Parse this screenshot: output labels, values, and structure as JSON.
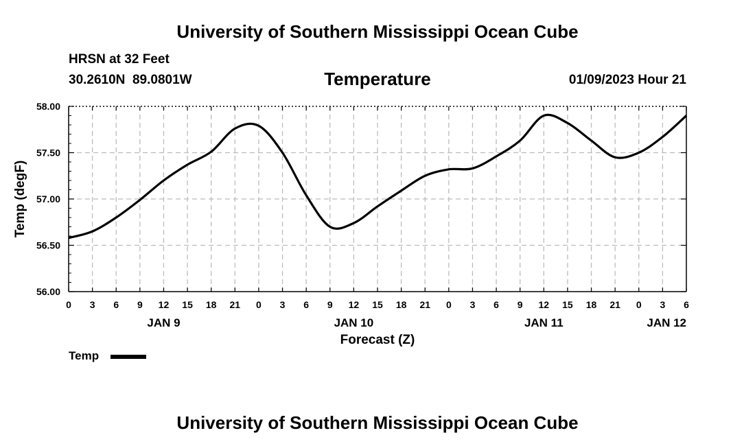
{
  "header": {
    "title": "University of Southern Mississippi Ocean Cube",
    "station": "HRSN at 32 Feet",
    "coords": "30.2610N  89.0801W",
    "variable": "Temperature",
    "timestamp": "01/09/2023 Hour 21"
  },
  "footer": {
    "title": "University of Southern Mississippi Ocean Cube"
  },
  "legend": {
    "label": "Temp"
  },
  "colors": {
    "line": "#000000",
    "grid": "#bbbbbb",
    "background": "#ffffff"
  },
  "chart_data": {
    "type": "line",
    "xlabel": "Forecast (Z)",
    "ylabel": "Temp (degF)",
    "ylim": [
      56.0,
      58.0
    ],
    "y_ticks": [
      "56.00",
      "56.50",
      "57.00",
      "57.50",
      "58.00"
    ],
    "xlim": [
      "2023-01-09 00Z",
      "2023-01-12 06Z"
    ],
    "x_tick_labels": [
      "0",
      "3",
      "6",
      "9",
      "12",
      "15",
      "18",
      "21",
      "0",
      "3",
      "6",
      "9",
      "12",
      "15",
      "18",
      "21",
      "0",
      "3",
      "6",
      "9",
      "12",
      "15",
      "18",
      "21",
      "0",
      "3",
      "6"
    ],
    "date_labels": [
      {
        "label": "JAN 9",
        "at": "2023-01-09 12Z"
      },
      {
        "label": "JAN 10",
        "at": "2023-01-10 12Z"
      },
      {
        "label": "JAN 11",
        "at": "2023-01-11 12Z"
      },
      {
        "label": "JAN 12",
        "at": "2023-01-12 06Z"
      }
    ],
    "grid": true,
    "series": [
      {
        "name": "Temp",
        "x": [
          "2023-01-09 00Z",
          "2023-01-09 03Z",
          "2023-01-09 06Z",
          "2023-01-09 09Z",
          "2023-01-09 12Z",
          "2023-01-09 15Z",
          "2023-01-09 18Z",
          "2023-01-09 21Z",
          "2023-01-10 00Z",
          "2023-01-10 03Z",
          "2023-01-10 06Z",
          "2023-01-10 09Z",
          "2023-01-10 12Z",
          "2023-01-10 15Z",
          "2023-01-10 18Z",
          "2023-01-10 21Z",
          "2023-01-11 00Z",
          "2023-01-11 03Z",
          "2023-01-11 06Z",
          "2023-01-11 09Z",
          "2023-01-11 12Z",
          "2023-01-11 15Z",
          "2023-01-11 18Z",
          "2023-01-11 21Z",
          "2023-01-12 00Z",
          "2023-01-12 03Z",
          "2023-01-12 06Z"
        ],
        "values": [
          56.58,
          56.65,
          56.8,
          56.99,
          57.2,
          57.37,
          57.51,
          57.76,
          57.79,
          57.5,
          57.04,
          56.7,
          56.74,
          56.92,
          57.09,
          57.25,
          57.32,
          57.33,
          57.46,
          57.63,
          57.9,
          57.82,
          57.63,
          57.45,
          57.5,
          57.67,
          57.9
        ]
      }
    ]
  }
}
